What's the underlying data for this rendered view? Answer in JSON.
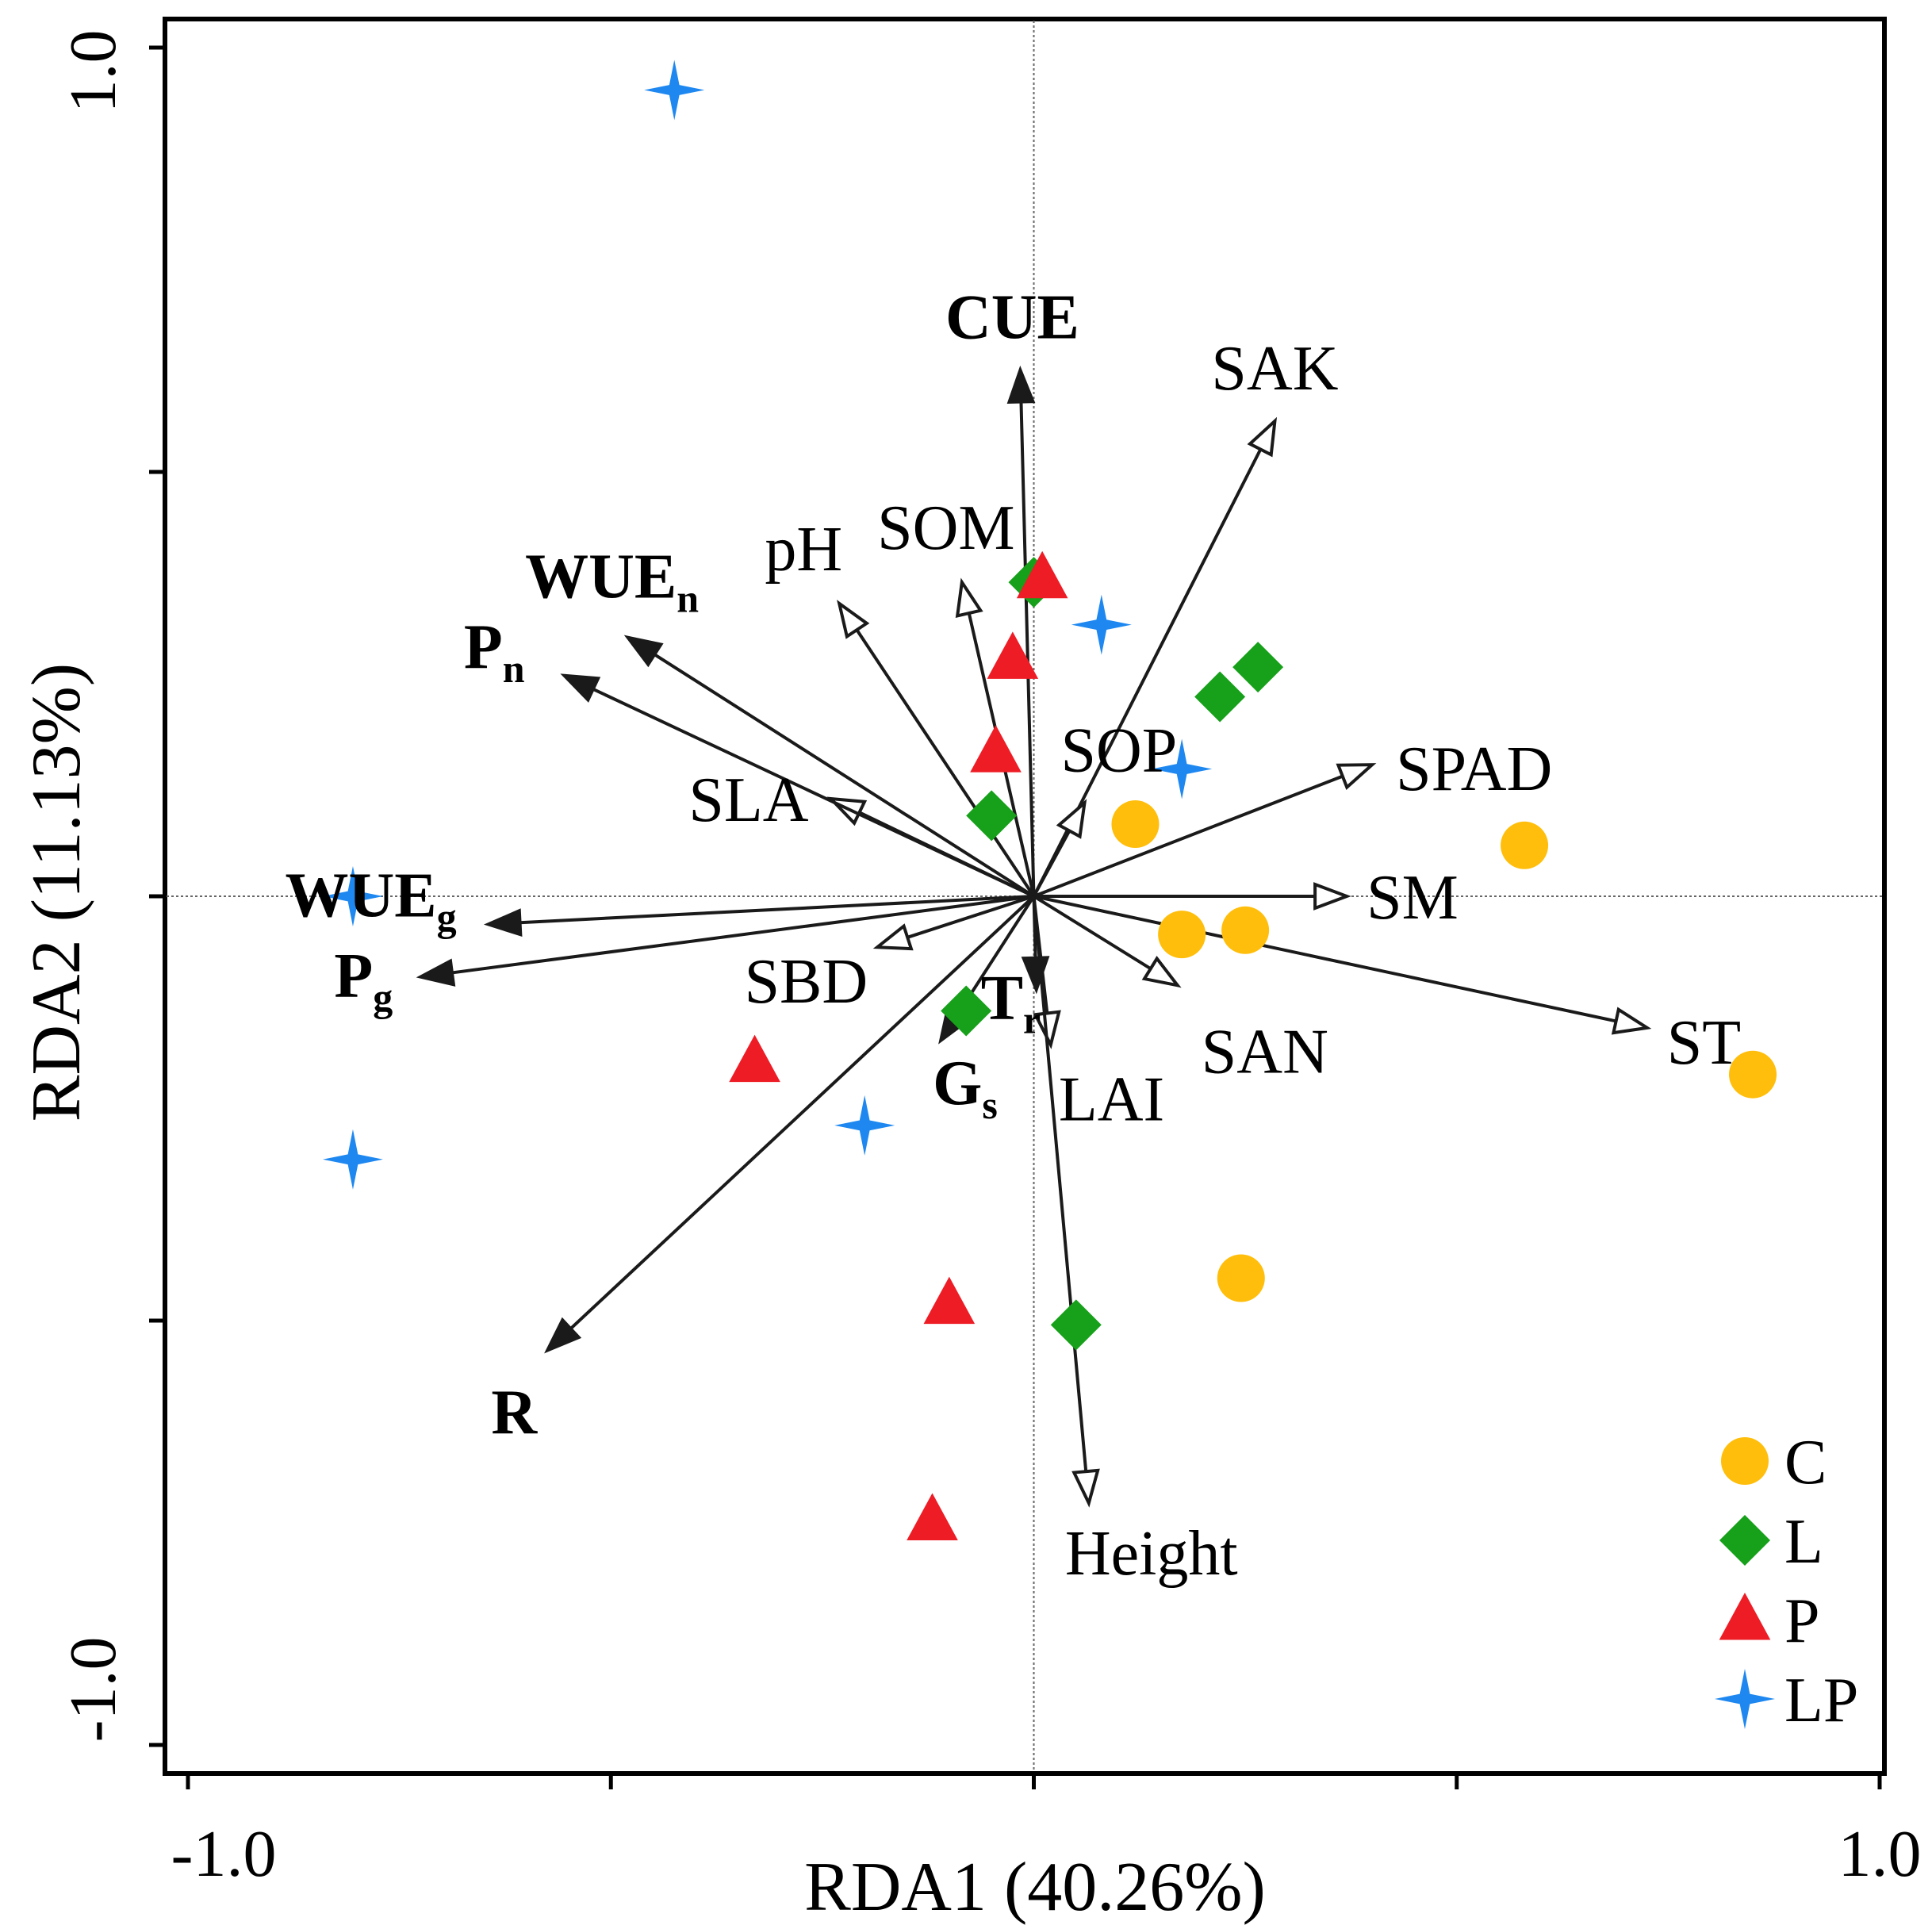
{
  "chart_data": {
    "type": "scatter",
    "subtype": "RDA biplot",
    "title": "",
    "xlabel": "RDA1 (40.26%)",
    "ylabel": "RDA2 (11.13%)",
    "xlim": [
      -1.0,
      1.0
    ],
    "ylim": [
      -1.0,
      1.0
    ],
    "x_tick_labels": [
      {
        "value": -1.0,
        "label": "-1.0"
      },
      {
        "value": 1.0,
        "label": "1.0"
      }
    ],
    "y_tick_labels": [
      {
        "value": 1.0,
        "label": "1.0"
      },
      {
        "value": -1.0,
        "label": "-1.0"
      }
    ],
    "x_ticks": [
      -1.0,
      -0.5,
      0.0,
      0.5,
      1.0
    ],
    "y_ticks": [
      -1.0,
      -0.5,
      0.0,
      0.5,
      1.0
    ],
    "zero_lines": true,
    "legend_position": "bottom-right",
    "colors": {
      "C": "#FFBE0B",
      "L": "#17A01A",
      "P": "#EE1C25",
      "LP": "#1E88F0",
      "arrow": "#000000"
    },
    "response_vectors": [
      {
        "name": "CUE",
        "base": "CUE",
        "sub": "",
        "x": -0.016,
        "y": 0.62
      },
      {
        "name": "WUEn",
        "base": "WUE",
        "sub": "n",
        "x": -0.48,
        "y": 0.305
      },
      {
        "name": "Pn",
        "base": "P",
        "sub": "n",
        "x": -0.555,
        "y": 0.26
      },
      {
        "name": "WUEg",
        "base": "WUE",
        "sub": "g",
        "x": -0.645,
        "y": -0.033
      },
      {
        "name": "Pg",
        "base": "P",
        "sub": "g",
        "x": -0.725,
        "y": -0.095
      },
      {
        "name": "Gs",
        "base": "G",
        "sub": "s",
        "x": -0.11,
        "y": -0.17
      },
      {
        "name": "Tr",
        "base": "T",
        "sub": "r",
        "x": 0.003,
        "y": -0.11
      },
      {
        "name": "R",
        "base": "R",
        "sub": "",
        "x": -0.575,
        "y": -0.535
      }
    ],
    "explanatory_vectors": [
      {
        "name": "SAK",
        "x": 0.285,
        "y": 0.56
      },
      {
        "name": "SOM",
        "x": -0.085,
        "y": 0.37
      },
      {
        "name": "pH",
        "x": -0.23,
        "y": 0.345
      },
      {
        "name": "SPAD",
        "x": 0.4,
        "y": 0.155
      },
      {
        "name": "SOP",
        "x": 0.06,
        "y": 0.11
      },
      {
        "name": "SLA",
        "x": -0.24,
        "y": 0.115
      },
      {
        "name": "SM",
        "x": 0.37,
        "y": 0.0
      },
      {
        "name": "SBD",
        "x": -0.185,
        "y": -0.06
      },
      {
        "name": "SAN",
        "x": 0.17,
        "y": -0.105
      },
      {
        "name": "ST",
        "x": 0.725,
        "y": -0.155
      },
      {
        "name": "LAI",
        "x": 0.02,
        "y": -0.175
      },
      {
        "name": "Height",
        "x": 0.065,
        "y": -0.715
      }
    ],
    "series": [
      {
        "name": "C",
        "marker": "circle",
        "points": [
          {
            "x": 0.12,
            "y": 0.085
          },
          {
            "x": 0.58,
            "y": 0.06
          },
          {
            "x": 0.175,
            "y": -0.045
          },
          {
            "x": 0.25,
            "y": -0.04
          },
          {
            "x": 0.85,
            "y": -0.21
          },
          {
            "x": 0.245,
            "y": -0.45
          }
        ]
      },
      {
        "name": "L",
        "marker": "diamond",
        "points": [
          {
            "x": 0.0,
            "y": 0.37
          },
          {
            "x": 0.265,
            "y": 0.27
          },
          {
            "x": 0.22,
            "y": 0.235
          },
          {
            "x": -0.05,
            "y": 0.095
          },
          {
            "x": -0.08,
            "y": -0.135
          },
          {
            "x": 0.05,
            "y": -0.505
          }
        ]
      },
      {
        "name": "P",
        "marker": "triangle",
        "points": [
          {
            "x": 0.01,
            "y": 0.375
          },
          {
            "x": -0.025,
            "y": 0.28
          },
          {
            "x": -0.045,
            "y": 0.17
          },
          {
            "x": -0.33,
            "y": -0.195
          },
          {
            "x": -0.1,
            "y": -0.48
          },
          {
            "x": -0.12,
            "y": -0.735
          }
        ]
      },
      {
        "name": "LP",
        "marker": "star",
        "points": [
          {
            "x": -0.425,
            "y": 0.95
          },
          {
            "x": 0.08,
            "y": 0.32
          },
          {
            "x": 0.175,
            "y": 0.15
          },
          {
            "x": -0.805,
            "y": 0.0
          },
          {
            "x": -0.2,
            "y": -0.27
          },
          {
            "x": -0.805,
            "y": -0.31
          }
        ]
      }
    ],
    "legend": [
      "C",
      "L",
      "P",
      "LP"
    ]
  }
}
